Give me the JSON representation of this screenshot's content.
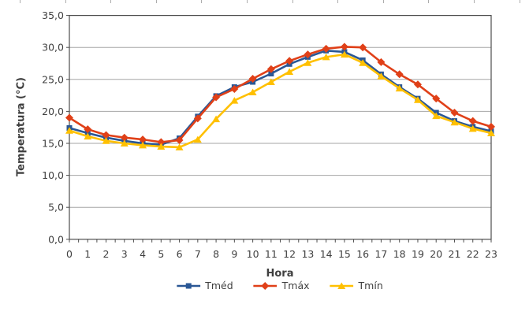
{
  "page": {
    "background": "#FFFFFF"
  },
  "top_ruler_ticks": {
    "count": 12,
    "start_x": 25,
    "spacing": 57.6,
    "color": "#ADADAD"
  },
  "chart_data": {
    "type": "line",
    "title": "",
    "xlabel": "Hora",
    "ylabel": "Temperatura (°C)",
    "categories": [
      0,
      1,
      2,
      3,
      4,
      5,
      6,
      7,
      8,
      9,
      10,
      11,
      12,
      13,
      14,
      15,
      16,
      17,
      18,
      19,
      20,
      21,
      22,
      23
    ],
    "x_tick_labels": [
      "0",
      "1",
      "2",
      "3",
      "4",
      "5",
      "6",
      "7",
      "8",
      "9",
      "10",
      "11",
      "12",
      "13",
      "14",
      "15",
      "16",
      "17",
      "18",
      "19",
      "20",
      "21",
      "22",
      "23"
    ],
    "ylim": [
      0,
      35
    ],
    "y_ticks": [
      0,
      5,
      10,
      15,
      20,
      25,
      30,
      35
    ],
    "y_tick_labels": [
      "0,0",
      "5,0",
      "10,0",
      "15,0",
      "20,0",
      "25,0",
      "30,0",
      "35,0"
    ],
    "grid": "horizontal-major",
    "legend_position": "bottom",
    "series": [
      {
        "name": "Tméd",
        "marker": "square",
        "color": "#2A5795",
        "values": [
          17.4,
          16.6,
          15.9,
          15.4,
          15.0,
          14.8,
          15.8,
          19.2,
          22.4,
          23.8,
          24.6,
          25.9,
          27.4,
          28.5,
          29.5,
          29.3,
          28.0,
          25.8,
          23.8,
          22.0,
          19.8,
          18.5,
          17.6,
          16.9
        ]
      },
      {
        "name": "Tmáx",
        "marker": "diamond",
        "color": "#E04018",
        "values": [
          19.0,
          17.2,
          16.3,
          15.9,
          15.6,
          15.2,
          15.5,
          18.9,
          22.2,
          23.5,
          25.1,
          26.6,
          27.9,
          28.9,
          29.8,
          30.1,
          30.0,
          27.7,
          25.8,
          24.2,
          22.0,
          19.8,
          18.5,
          17.6
        ]
      },
      {
        "name": "Tmín",
        "marker": "triangle",
        "color": "#FFC000",
        "values": [
          17.0,
          16.1,
          15.4,
          15.0,
          14.7,
          14.5,
          14.4,
          15.6,
          18.8,
          21.7,
          23.0,
          24.6,
          26.2,
          27.6,
          28.5,
          28.9,
          27.6,
          25.5,
          23.6,
          21.8,
          19.3,
          18.3,
          17.3,
          16.6
        ]
      }
    ],
    "colors": {
      "gridline": "#A6A6A6",
      "axis": "#4D4D4D",
      "tick_text": "#3F3F3F"
    }
  }
}
